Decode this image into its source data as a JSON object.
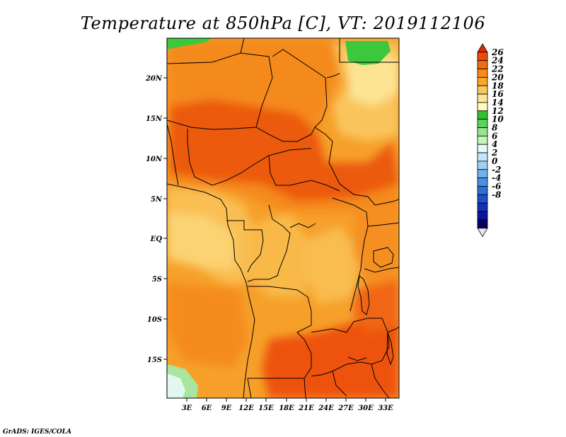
{
  "title": "Temperature at 850hPa [C], VT: 2019112106",
  "credit": "GrADS: IGES/COLA",
  "lat_labels": [
    "20N",
    "15N",
    "10N",
    "5N",
    "EQ",
    "5S",
    "10S",
    "15S"
  ],
  "lon_labels": [
    "3E",
    "6E",
    "9E",
    "12E",
    "15E",
    "18E",
    "21E",
    "24E",
    "27E",
    "30E",
    "33E"
  ],
  "colorbar": {
    "levels": [
      26,
      24,
      22,
      20,
      18,
      16,
      14,
      12,
      10,
      8,
      6,
      4,
      2,
      0,
      -2,
      -4,
      -6,
      -8
    ],
    "colors": [
      "#d42c05",
      "#ee4a08",
      "#f46b10",
      "#f68c18",
      "#f7a72a",
      "#fbc860",
      "#fbe69a",
      "#fefcc0",
      "#32c035",
      "#5cd45c",
      "#92e88a",
      "#c4f5bd",
      "#e3fbf6",
      "#c2e6fb",
      "#a0d0f5",
      "#6fb2ef",
      "#4591e6",
      "#2c6fdb",
      "#1d50cc",
      "#1232b4",
      "#0a159a",
      "#080060",
      "#e8e4f4"
    ]
  },
  "map_colors": {
    "hot": "#ec4f06",
    "warm": "#f5841a",
    "mid": "#f7a125",
    "mild": "#fac55d",
    "cool": "#fce89c",
    "green": "#3cc83a",
    "lightgreen": "#a8e6a0",
    "pale": "#e0f8f0"
  }
}
